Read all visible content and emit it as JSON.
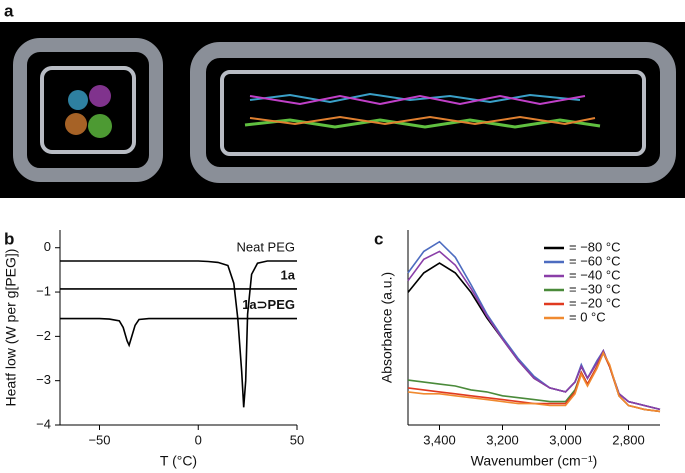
{
  "panel_a": {
    "label": "a"
  },
  "chart_data": [
    {
      "type": "line",
      "panel_label": "b",
      "x_label": "T (°C)",
      "y_label": "Heatf low (W per g[PEG])",
      "x": [
        -70,
        -60,
        -50,
        -45,
        -40,
        -38,
        -36,
        -35,
        -34,
        -32,
        -30,
        -25,
        -20,
        -10,
        0,
        5,
        10,
        15,
        18,
        20,
        22,
        23,
        24,
        25,
        27,
        30,
        35,
        40,
        50
      ],
      "series": [
        {
          "name": "Neat PEG",
          "color": "#000000",
          "values": [
            -0.3,
            -0.3,
            -0.3,
            -0.3,
            -0.3,
            -0.3,
            -0.3,
            -0.3,
            -0.3,
            -0.3,
            -0.3,
            -0.3,
            -0.3,
            -0.3,
            -0.3,
            -0.31,
            -0.33,
            -0.4,
            -0.8,
            -1.6,
            -2.8,
            -3.6,
            -3.0,
            -1.5,
            -0.6,
            -0.35,
            -0.3,
            -0.3,
            -0.3
          ]
        },
        {
          "name": "1a",
          "color": "#000000",
          "values": [
            -0.93,
            -0.93,
            -0.93,
            -0.93,
            -0.93,
            -0.93,
            -0.93,
            -0.93,
            -0.93,
            -0.93,
            -0.93,
            -0.93,
            -0.93,
            -0.93,
            -0.93,
            -0.93,
            -0.93,
            -0.93,
            -0.93,
            -0.93,
            -0.93,
            -0.93,
            -0.93,
            -0.93,
            -0.93,
            -0.93,
            -0.93,
            -0.93,
            -0.93
          ]
        },
        {
          "name": "1a⊃PEG",
          "color": "#000000",
          "values": [
            -1.6,
            -1.6,
            -1.6,
            -1.61,
            -1.65,
            -1.8,
            -2.1,
            -2.2,
            -2.05,
            -1.75,
            -1.62,
            -1.6,
            -1.6,
            -1.6,
            -1.6,
            -1.6,
            -1.6,
            -1.6,
            -1.6,
            -1.6,
            -1.6,
            -1.6,
            -1.6,
            -1.6,
            -1.6,
            -1.6,
            -1.6,
            -1.6,
            -1.6
          ]
        }
      ],
      "xlim": [
        -70,
        50
      ],
      "xticks": [
        {
          "value": -50,
          "label": "−50"
        },
        0,
        50
      ],
      "ylim": [
        -4,
        0.4
      ],
      "yticks": [
        0,
        {
          "value": -1,
          "label": "−1"
        },
        {
          "value": -2,
          "label": "−2"
        },
        {
          "value": -3,
          "label": "−3"
        },
        {
          "value": -4,
          "label": "−4"
        }
      ],
      "labels_on_curves": true
    },
    {
      "type": "line",
      "panel_label": "c",
      "x_label": "Wavenumber (cm⁻¹)",
      "y_label": "Absorbance (a.u.)",
      "x": [
        3500,
        3450,
        3400,
        3350,
        3300,
        3250,
        3200,
        3150,
        3100,
        3050,
        3000,
        2970,
        2950,
        2930,
        2900,
        2880,
        2860,
        2830,
        2800,
        2750,
        2700
      ],
      "series": [
        {
          "name": "= −80 °C",
          "color": "#000000",
          "values": [
            68,
            78,
            83,
            78,
            68,
            55,
            44,
            33,
            24,
            19,
            17,
            22,
            30,
            24,
            32,
            38,
            30,
            16,
            12,
            10,
            8
          ]
        },
        {
          "name": "= −60 °C",
          "color": "#4d6cc0",
          "values": [
            78,
            89,
            94,
            86,
            72,
            57,
            45,
            34,
            25,
            19,
            17,
            22,
            31,
            24,
            33,
            38,
            30,
            16,
            12,
            10,
            8
          ]
        },
        {
          "name": "= −40 °C",
          "color": "#8a3ea8",
          "values": [
            74,
            85,
            89,
            82,
            70,
            56,
            44,
            33,
            24,
            19,
            17,
            22,
            30,
            24,
            32,
            38,
            30,
            16,
            12,
            10,
            8
          ]
        },
        {
          "name": "= −30 °C",
          "color": "#4a8a3a",
          "values": [
            23,
            22,
            21,
            20,
            18,
            17,
            15,
            14,
            13,
            12,
            12,
            18,
            27,
            21,
            30,
            37,
            30,
            15,
            10,
            8,
            7
          ]
        },
        {
          "name": "= −20 °C",
          "color": "#e03a20",
          "values": [
            19,
            18,
            17,
            16,
            15,
            14,
            13,
            12,
            11,
            11,
            11,
            17,
            27,
            21,
            30,
            37,
            30,
            15,
            10,
            8,
            7
          ]
        },
        {
          "name": "= 0 °C",
          "color": "#f08a30",
          "values": [
            17,
            16,
            16,
            15,
            14,
            13,
            12,
            11,
            11,
            10,
            10,
            16,
            26,
            20,
            29,
            37,
            31,
            15,
            10,
            8,
            7
          ]
        }
      ],
      "xlim": [
        3500,
        2700
      ],
      "xticks": [
        {
          "value": 3400,
          "label": "3,400"
        },
        {
          "value": 3200,
          "label": "3,200"
        },
        {
          "value": 3000,
          "label": "3,000"
        },
        {
          "value": 2800,
          "label": "2,800"
        }
      ],
      "ylim": [
        0,
        100
      ],
      "legend": "upper right"
    }
  ]
}
